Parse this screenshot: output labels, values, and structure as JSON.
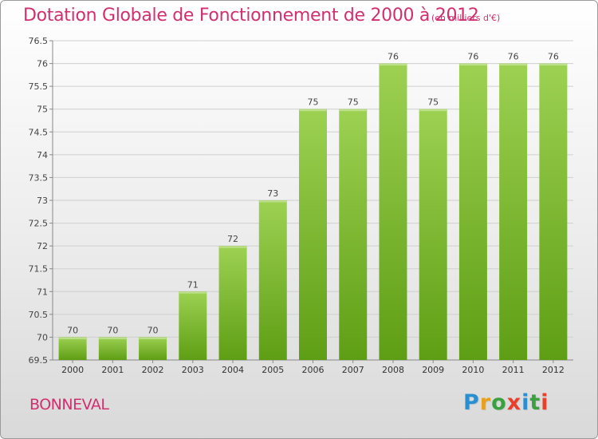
{
  "header": {
    "title": "Dotation Globale de Fonctionnement de 2000 à 2012",
    "unit": "(en milliers d'€)"
  },
  "footer": {
    "commune": "BONNEVAL",
    "brand_letters": [
      "P",
      "r",
      "o",
      "x",
      "i",
      "t",
      "i"
    ],
    "brand_colors": [
      "#2a8fd0",
      "#e8a020",
      "#3aa040",
      "#e8402a",
      "#2a8fd0",
      "#3aa040",
      "#e8402a"
    ]
  },
  "colors": {
    "accent": "#d12f70",
    "bar_top": "#9dd152",
    "bar_bottom": "#5e9e14"
  },
  "chart_data": {
    "type": "bar",
    "title": "Dotation Globale de Fonctionnement de 2000 à 2012",
    "subtitle": "(en milliers d'€)",
    "xlabel": "",
    "ylabel": "",
    "categories": [
      "2000",
      "2001",
      "2002",
      "2003",
      "2004",
      "2005",
      "2006",
      "2007",
      "2008",
      "2009",
      "2010",
      "2011",
      "2012"
    ],
    "values": [
      70,
      70,
      70,
      71,
      72,
      73,
      75,
      75,
      76,
      75,
      76,
      76,
      76
    ],
    "ylim": [
      69.5,
      76.5
    ],
    "yticks": [
      "69.5",
      "70",
      "70.5",
      "71",
      "71.5",
      "72",
      "72.5",
      "73",
      "73.5",
      "74",
      "74.5",
      "75",
      "75.5",
      "76",
      "76.5"
    ],
    "grid": true,
    "legend": "none"
  }
}
